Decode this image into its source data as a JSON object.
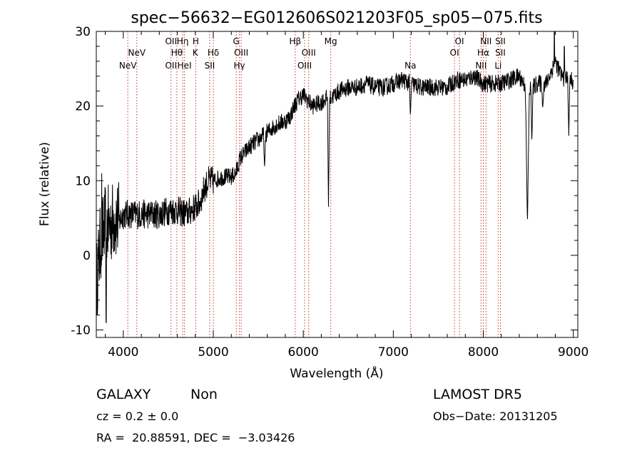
{
  "chart_data": {
    "type": "line",
    "title": "spec−56632−EG012606S021203F05_sp05−075.fits",
    "xlabel": "Wavelength (Å)",
    "ylabel": "Flux (relative)",
    "xlim": [
      3700,
      9050
    ],
    "ylim": [
      -11,
      30
    ],
    "xticks": [
      4000,
      5000,
      6000,
      7000,
      8000,
      9000
    ],
    "yticks": [
      -10,
      0,
      10,
      20,
      30
    ],
    "grid": false,
    "line_color": "#000000",
    "marker_color": "#c83232",
    "spectrum": {
      "anchors": [
        [
          3700,
          -4
        ],
        [
          3750,
          2
        ],
        [
          3800,
          4
        ],
        [
          3850,
          4
        ],
        [
          3900,
          5
        ],
        [
          3950,
          4.5
        ],
        [
          4000,
          5.5
        ],
        [
          4100,
          5.5
        ],
        [
          4200,
          5.5
        ],
        [
          4300,
          5.5
        ],
        [
          4400,
          5.5
        ],
        [
          4500,
          6
        ],
        [
          4600,
          6
        ],
        [
          4700,
          5.5
        ],
        [
          4750,
          6
        ],
        [
          4800,
          6.5
        ],
        [
          4850,
          7
        ],
        [
          4900,
          9
        ],
        [
          4950,
          10
        ],
        [
          5000,
          10
        ],
        [
          5100,
          10.5
        ],
        [
          5200,
          10.5
        ],
        [
          5250,
          11
        ],
        [
          5300,
          13
        ],
        [
          5400,
          14.5
        ],
        [
          5500,
          15.5
        ],
        [
          5600,
          16.5
        ],
        [
          5700,
          17.5
        ],
        [
          5800,
          18
        ],
        [
          5850,
          18.5
        ],
        [
          5900,
          20
        ],
        [
          5950,
          21
        ],
        [
          6000,
          21.5
        ],
        [
          6100,
          20
        ],
        [
          6200,
          20.5
        ],
        [
          6250,
          21
        ],
        [
          6300,
          21
        ],
        [
          6400,
          22
        ],
        [
          6500,
          22.5
        ],
        [
          6600,
          22.5
        ],
        [
          6700,
          23
        ],
        [
          6800,
          22.5
        ],
        [
          6900,
          22.5
        ],
        [
          7000,
          23
        ],
        [
          7100,
          23.5
        ],
        [
          7200,
          23
        ],
        [
          7300,
          22.5
        ],
        [
          7400,
          22.5
        ],
        [
          7500,
          22.5
        ],
        [
          7600,
          22.5
        ],
        [
          7700,
          23.5
        ],
        [
          7800,
          23.5
        ],
        [
          7900,
          24
        ],
        [
          8000,
          23
        ],
        [
          8100,
          23
        ],
        [
          8200,
          23
        ],
        [
          8300,
          23.5
        ],
        [
          8400,
          24
        ],
        [
          8450,
          23
        ],
        [
          8500,
          22
        ],
        [
          8600,
          23
        ],
        [
          8700,
          23
        ],
        [
          8800,
          26
        ],
        [
          8850,
          24.5
        ],
        [
          8900,
          23.5
        ],
        [
          8950,
          24
        ],
        [
          9000,
          23
        ]
      ],
      "dips": [
        [
          5570,
          11.5
        ],
        [
          6280,
          6.5
        ],
        [
          7190,
          18.5
        ],
        [
          8490,
          4
        ],
        [
          8540,
          15
        ],
        [
          8660,
          19.5
        ],
        [
          8950,
          16
        ]
      ],
      "spikes": [
        [
          3810,
          -9
        ],
        [
          3760,
          11
        ],
        [
          8790,
          30
        ],
        [
          8900,
          28
        ]
      ]
    },
    "lines": [
      {
        "label": "NeV",
        "wavelength": 4050,
        "row": 3
      },
      {
        "label": "NeV",
        "wavelength": 4150,
        "row": 2
      },
      {
        "label": "OII",
        "wavelength": 4530,
        "row": 1
      },
      {
        "label": "OII",
        "wavelength": 4530,
        "row": 3
      },
      {
        "label": "Hθ",
        "wavelength": 4595,
        "row": 2
      },
      {
        "label": "Hη",
        "wavelength": 4660,
        "row": 1
      },
      {
        "label": "HeI",
        "wavelength": 4680,
        "row": 3
      },
      {
        "label": "H",
        "wavelength": 4805,
        "row": 1
      },
      {
        "label": "K",
        "wavelength": 4800,
        "row": 2
      },
      {
        "label": "Hδ",
        "wavelength": 5000,
        "row": 2
      },
      {
        "label": "SII",
        "wavelength": 4960,
        "row": 3
      },
      {
        "label": "G",
        "wavelength": 5255,
        "row": 1
      },
      {
        "label": "OIII",
        "wavelength": 5310,
        "row": 2
      },
      {
        "label": "Hγ",
        "wavelength": 5290,
        "row": 3
      },
      {
        "label": "Hβ",
        "wavelength": 5910,
        "row": 1
      },
      {
        "label": "OIII",
        "wavelength": 6060,
        "row": 2
      },
      {
        "label": "OIII",
        "wavelength": 6015,
        "row": 3
      },
      {
        "label": "Mg",
        "wavelength": 6305,
        "row": 1
      },
      {
        "label": "Na",
        "wavelength": 7190,
        "row": 3
      },
      {
        "label": "OI",
        "wavelength": 7735,
        "row": 1
      },
      {
        "label": "OI",
        "wavelength": 7680,
        "row": 2
      },
      {
        "label": "NII",
        "wavelength": 8030,
        "row": 1
      },
      {
        "label": "Hα",
        "wavelength": 8000,
        "row": 2
      },
      {
        "label": "NII",
        "wavelength": 7975,
        "row": 3
      },
      {
        "label": "SII",
        "wavelength": 8190,
        "row": 1
      },
      {
        "label": "SII",
        "wavelength": 8190,
        "row": 2
      },
      {
        "label": "Li",
        "wavelength": 8165,
        "row": 3
      }
    ]
  },
  "info": {
    "class": "GALAXY",
    "subclass": "Non",
    "cz": "cz = 0.2 ± 0.0",
    "radec": "RA =  20.88591, DEC =  −3.03426",
    "survey": "LAMOST DR5",
    "obs_date": "Obs−Date: 20131205"
  }
}
